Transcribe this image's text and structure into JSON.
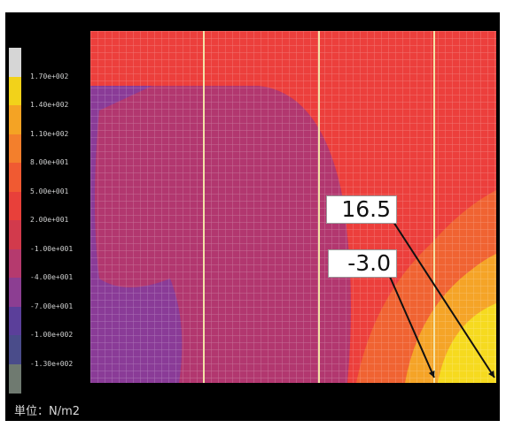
{
  "chart_data": {
    "type": "heatmap",
    "title": "",
    "xlabel": "",
    "ylabel": "",
    "colorbar": {
      "tick_labels": [
        "1.70e+002",
        "1.40e+002",
        "1.10e+002",
        "8.00e+001",
        "5.00e+001",
        "2.00e+001",
        "-1.00e+001",
        "-4.00e+001",
        "-7.00e+001",
        "-1.00e+002",
        "-1.30e+002"
      ],
      "colors": [
        "#d6d6d6",
        "#f2d21a",
        "#f4a324",
        "#f37f2c",
        "#f05a32",
        "#e8403a",
        "#d23a4c",
        "#b53a6e",
        "#8c3e92",
        "#5b3f9a",
        "#4a4c8a",
        "#6f7a70"
      ]
    },
    "unit_label": "単位：N/m2",
    "callouts": [
      {
        "label": "16.5",
        "value": 16.5
      },
      {
        "label": "-3.0",
        "value": -3.0
      }
    ],
    "regions": {
      "background_color": "#ec3f3c",
      "low_zone_colors": [
        "#b2376f",
        "#8a3b97"
      ],
      "high_zone_colors": [
        "#f06332",
        "#f5a427",
        "#f6da1f"
      ],
      "divider_count": 3
    }
  }
}
